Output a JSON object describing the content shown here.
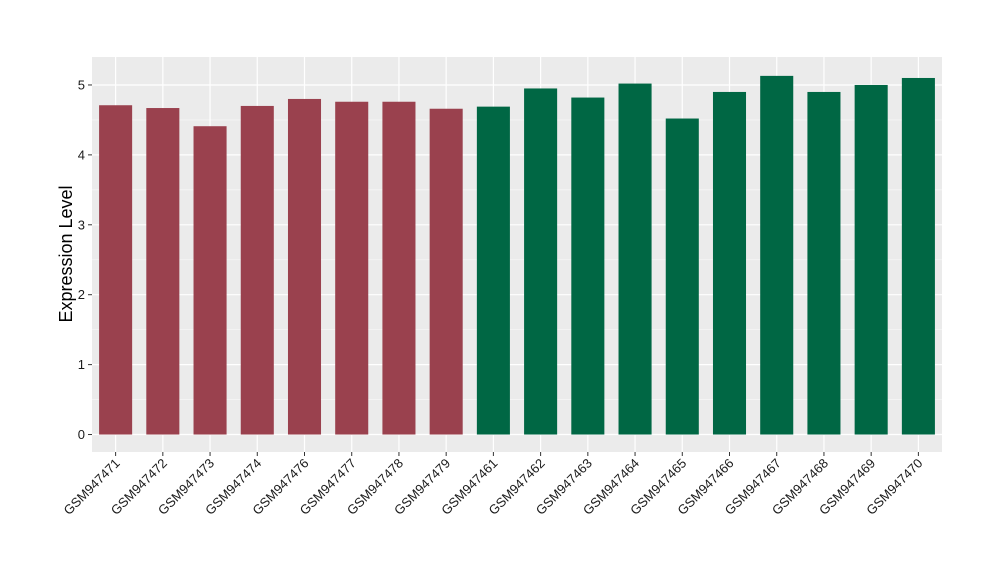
{
  "chart_data": {
    "type": "bar",
    "title": "",
    "xlabel": "",
    "ylabel": "Expression Level",
    "ylim": [
      -0.25,
      5.4
    ],
    "yticks": [
      0,
      1,
      2,
      3,
      4,
      5
    ],
    "grid": true,
    "background": "#ebebeb",
    "categories": [
      "GSM947471",
      "GSM947472",
      "GSM947473",
      "GSM947474",
      "GSM947476",
      "GSM947477",
      "GSM947478",
      "GSM947479",
      "GSM947461",
      "GSM947462",
      "GSM947463",
      "GSM947464",
      "GSM947465",
      "GSM947466",
      "GSM947467",
      "GSM947468",
      "GSM947469",
      "GSM947470"
    ],
    "values": [
      4.71,
      4.67,
      4.41,
      4.7,
      4.8,
      4.76,
      4.76,
      4.66,
      4.69,
      4.95,
      4.82,
      5.02,
      4.52,
      4.9,
      5.13,
      4.9,
      5.0,
      5.1
    ],
    "groups": [
      0,
      0,
      0,
      0,
      0,
      0,
      0,
      0,
      1,
      1,
      1,
      1,
      1,
      1,
      1,
      1,
      1,
      1
    ],
    "group_colors": [
      "#9a414e",
      "#006744"
    ]
  }
}
